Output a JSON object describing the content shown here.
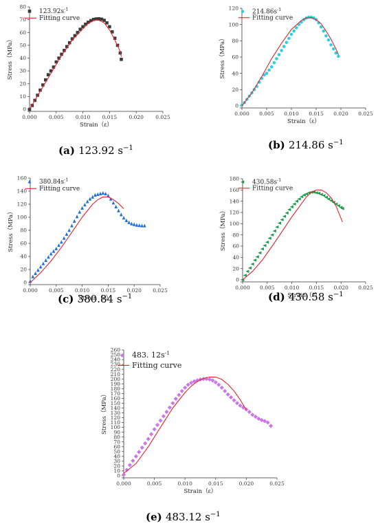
{
  "colors": {
    "fit": "#e8232a",
    "axis": "#333333"
  },
  "chart_data": [
    {
      "id": "a",
      "type": "scatter",
      "caption_label": "(a)",
      "caption_rate": "123.92 s",
      "caption_exp": "−1",
      "xlabel": "Strain（ε）",
      "ylabel": "Stress（MPa）",
      "xlim": [
        0,
        0.025
      ],
      "ylim": [
        0,
        80
      ],
      "xticks": [
        "0.000",
        "0.005",
        "0.010",
        "0.015",
        "0.020",
        "0.025"
      ],
      "yticks": [
        0,
        10,
        20,
        30,
        40,
        50,
        60,
        70,
        80
      ],
      "grid": false,
      "legend_position": "top-left",
      "marker": "square",
      "marker_color": "#3a3a3a",
      "series": [
        {
          "name": "123.92s",
          "name_exp": "-1",
          "x": [
            0,
            0.0005,
            0.001,
            0.0015,
            0.002,
            0.0025,
            0.003,
            0.0035,
            0.004,
            0.0045,
            0.005,
            0.0055,
            0.006,
            0.0065,
            0.007,
            0.0075,
            0.008,
            0.0085,
            0.009,
            0.0095,
            0.01,
            0.0105,
            0.011,
            0.0115,
            0.012,
            0.0125,
            0.013,
            0.0135,
            0.014,
            0.0145,
            0.015,
            0.0155,
            0.016,
            0.0165,
            0.017,
            0.0172
          ],
          "y": [
            0,
            3,
            7,
            11,
            15,
            19,
            23,
            27,
            30,
            33,
            37,
            40,
            43,
            46,
            49,
            52,
            55,
            57.5,
            60,
            62.5,
            64.5,
            66.5,
            68,
            69.3,
            70.2,
            70.6,
            70.7,
            70.4,
            69.5,
            67.5,
            64.5,
            60.5,
            55.5,
            50,
            44,
            39
          ]
        },
        {
          "name": "Fitting curve",
          "x": [
            0,
            0.002,
            0.004,
            0.006,
            0.008,
            0.01,
            0.011,
            0.012,
            0.0125,
            0.013,
            0.014,
            0.015,
            0.016,
            0.017,
            0.0172
          ],
          "y": [
            0,
            14,
            28,
            42,
            54,
            63,
            67,
            69.3,
            69.8,
            69.6,
            67.5,
            62,
            54,
            45,
            41
          ]
        }
      ]
    },
    {
      "id": "b",
      "type": "scatter",
      "caption_label": "(b)",
      "caption_rate": "214.86 s",
      "caption_exp": "−1",
      "xlabel": "Strain（ε）",
      "ylabel": "Stress（MPa）",
      "xlim": [
        0,
        0.025
      ],
      "ylim": [
        0,
        120
      ],
      "xticks": [
        "0.000",
        "0.005",
        "0.010",
        "0.015",
        "0.020",
        "0.025"
      ],
      "yticks": [
        0,
        20,
        40,
        60,
        80,
        100,
        120
      ],
      "grid": false,
      "legend_position": "top-left",
      "marker": "circle",
      "marker_color": "#2ed0e0",
      "series": [
        {
          "name": "214.86s",
          "name_exp": "-1",
          "x": [
            0,
            0.0005,
            0.001,
            0.0015,
            0.002,
            0.0025,
            0.003,
            0.0035,
            0.004,
            0.0045,
            0.005,
            0.0055,
            0.006,
            0.0065,
            0.007,
            0.0075,
            0.008,
            0.0085,
            0.009,
            0.0095,
            0.01,
            0.0105,
            0.011,
            0.0115,
            0.012,
            0.0125,
            0.013,
            0.0135,
            0.014,
            0.0145,
            0.015,
            0.0155,
            0.016,
            0.0165,
            0.017,
            0.0175,
            0.018,
            0.0185,
            0.019,
            0.0195
          ],
          "y": [
            1,
            4,
            8,
            12,
            16,
            20,
            24,
            29,
            34,
            38,
            40,
            44,
            48,
            53,
            58,
            63,
            68,
            73,
            78,
            83,
            88,
            92,
            96,
            100,
            103,
            106,
            108,
            109,
            109,
            108,
            106,
            102,
            97,
            92,
            86,
            81,
            75,
            70,
            65,
            61
          ]
        },
        {
          "name": "Fitting curve",
          "x": [
            0,
            0.002,
            0.004,
            0.006,
            0.008,
            0.01,
            0.012,
            0.013,
            0.014,
            0.015,
            0.016,
            0.017,
            0.018,
            0.019,
            0.0195
          ],
          "y": [
            0,
            16,
            36,
            58,
            77,
            94,
            105,
            108,
            108.5,
            106,
            101,
            92,
            82,
            70,
            63
          ]
        }
      ]
    },
    {
      "id": "c",
      "type": "scatter",
      "caption_label": "(c)",
      "caption_rate": "380.84 s",
      "caption_exp": "−1",
      "xlabel": "Strain（ε）",
      "ylabel": "Stress（MPa）",
      "xlim": [
        0,
        0.025
      ],
      "ylim": [
        0,
        160
      ],
      "xticks": [
        "0.000",
        "0.005",
        "0.010",
        "0.015",
        "0.020",
        "0.025"
      ],
      "yticks": [
        0,
        20,
        40,
        60,
        80,
        100,
        120,
        140,
        160
      ],
      "grid": false,
      "legend_position": "top-left",
      "marker": "triangle",
      "marker_color": "#1e6fd9",
      "series": [
        {
          "name": "380.84s",
          "name_exp": "-1",
          "x": [
            0,
            0.0005,
            0.001,
            0.0015,
            0.002,
            0.0025,
            0.003,
            0.0035,
            0.004,
            0.0045,
            0.005,
            0.0055,
            0.006,
            0.0065,
            0.007,
            0.0075,
            0.008,
            0.0085,
            0.009,
            0.0095,
            0.01,
            0.0105,
            0.011,
            0.0115,
            0.012,
            0.0125,
            0.013,
            0.0135,
            0.014,
            0.0145,
            0.015,
            0.0155,
            0.016,
            0.0165,
            0.017,
            0.0175,
            0.018,
            0.0185,
            0.019,
            0.0195,
            0.02,
            0.0205,
            0.021,
            0.0215,
            0.022
          ],
          "y": [
            2,
            9,
            14,
            19,
            24,
            29,
            34,
            39,
            44,
            48,
            52,
            57,
            62,
            68,
            74,
            80,
            87,
            94,
            101,
            108,
            114,
            119,
            124,
            128,
            131,
            134,
            135,
            136,
            137,
            136,
            133,
            128,
            122,
            116,
            110,
            104,
            99,
            95,
            92,
            90,
            89,
            88,
            87.5,
            87,
            87
          ]
        },
        {
          "name": "Fitting curve",
          "x": [
            0,
            0.002,
            0.004,
            0.006,
            0.008,
            0.01,
            0.012,
            0.013,
            0.014,
            0.015,
            0.016,
            0.017,
            0.018
          ],
          "y": [
            0,
            15,
            33,
            54,
            77,
            100,
            120,
            127,
            131,
            131,
            127,
            121,
            113
          ]
        }
      ]
    },
    {
      "id": "d",
      "type": "scatter",
      "caption_label": "(d)",
      "caption_rate": "430.58 s",
      "caption_exp": "−1",
      "xlabel": "Strain（ε）",
      "ylabel": "Stress（MPa）",
      "xlim": [
        0,
        0.025
      ],
      "ylim": [
        0,
        180
      ],
      "xticks": [
        "0.000",
        "0.005",
        "0.010",
        "0.015",
        "0.020",
        "0.025"
      ],
      "yticks": [
        0,
        20,
        40,
        60,
        80,
        100,
        120,
        140,
        160,
        180
      ],
      "grid": false,
      "legend_position": "top-left",
      "marker": "left-triangle",
      "marker_color": "#1f9a4a",
      "series": [
        {
          "name": "430.58s",
          "name_exp": "-1",
          "x": [
            0,
            0.0005,
            0.001,
            0.0015,
            0.002,
            0.0025,
            0.003,
            0.0035,
            0.004,
            0.0045,
            0.005,
            0.0055,
            0.006,
            0.0065,
            0.007,
            0.0075,
            0.008,
            0.0085,
            0.009,
            0.0095,
            0.01,
            0.0105,
            0.011,
            0.0115,
            0.012,
            0.0125,
            0.013,
            0.0135,
            0.014,
            0.0145,
            0.015,
            0.0155,
            0.016,
            0.0165,
            0.017,
            0.0175,
            0.018,
            0.0185,
            0.019,
            0.0195,
            0.02,
            0.0203
          ],
          "y": [
            0,
            8,
            15,
            21,
            28,
            35,
            41,
            48,
            55,
            61,
            67,
            74,
            80,
            87,
            94,
            101,
            107,
            113,
            119,
            125,
            130,
            135,
            140,
            144,
            148,
            151,
            153,
            155,
            156,
            156,
            155,
            154,
            152,
            150,
            147,
            144,
            141,
            138,
            135,
            132,
            129,
            127
          ]
        },
        {
          "name": "Fitting curve",
          "x": [
            0,
            0.002,
            0.004,
            0.006,
            0.008,
            0.01,
            0.012,
            0.013,
            0.014,
            0.015,
            0.016,
            0.017,
            0.018,
            0.019,
            0.0203
          ],
          "y": [
            0,
            15,
            35,
            60,
            86,
            112,
            136,
            148,
            156,
            160,
            160,
            155,
            146,
            131,
            103
          ]
        }
      ]
    },
    {
      "id": "e",
      "type": "scatter",
      "caption_label": "(e)",
      "caption_rate": "483.12 s",
      "caption_exp": "−1",
      "xlabel": "Strain（ε）",
      "ylabel": "Stress（MPa）",
      "xlim": [
        0,
        0.025
      ],
      "ylim": [
        0,
        260
      ],
      "xticks": [
        "0.000",
        "0.005",
        "0.010",
        "0.015",
        "0.020",
        "0.025"
      ],
      "yticks": [
        0,
        10,
        20,
        30,
        40,
        50,
        60,
        70,
        80,
        90,
        100,
        110,
        120,
        130,
        140,
        150,
        160,
        170,
        180,
        190,
        200,
        210,
        220,
        230,
        240,
        250,
        260
      ],
      "grid": false,
      "legend_position": "top-left",
      "marker": "diamond",
      "marker_color": "#cc77e8",
      "series": [
        {
          "name": "483. 12s",
          "name_exp": "-1",
          "x": [
            0,
            0.0005,
            0.001,
            0.0015,
            0.002,
            0.0025,
            0.003,
            0.0035,
            0.004,
            0.0045,
            0.005,
            0.0055,
            0.006,
            0.0065,
            0.007,
            0.0075,
            0.008,
            0.0085,
            0.009,
            0.0095,
            0.01,
            0.0105,
            0.011,
            0.0115,
            0.012,
            0.0125,
            0.013,
            0.0135,
            0.014,
            0.0145,
            0.015,
            0.0155,
            0.016,
            0.0165,
            0.017,
            0.0175,
            0.018,
            0.0185,
            0.019,
            0.0195,
            0.02,
            0.0205,
            0.021,
            0.0215,
            0.022,
            0.0225,
            0.023,
            0.0235,
            0.024
          ],
          "y": [
            2,
            12,
            22,
            31,
            40,
            49,
            58,
            67,
            76,
            86,
            96,
            105,
            114,
            123,
            132,
            141,
            150,
            159,
            167,
            175,
            182,
            188,
            192,
            195,
            197,
            199,
            200,
            200,
            199,
            197,
            193,
            188,
            182,
            175,
            168,
            162,
            156,
            150,
            145,
            141,
            137,
            132,
            126,
            122,
            118,
            115,
            113,
            110,
            103
          ]
        },
        {
          "name": "Fitting curve",
          "x": [
            0,
            0.002,
            0.004,
            0.006,
            0.008,
            0.01,
            0.011,
            0.012,
            0.013,
            0.014,
            0.015,
            0.016,
            0.017,
            0.018,
            0.019,
            0.02
          ],
          "y": [
            5,
            25,
            60,
            100,
            140,
            172,
            185,
            195,
            201,
            204,
            204,
            199,
            189,
            175,
            157,
            136
          ]
        }
      ]
    }
  ]
}
